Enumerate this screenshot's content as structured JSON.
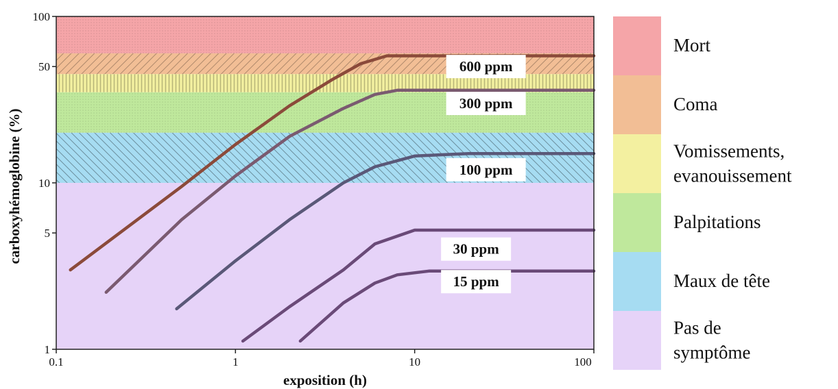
{
  "chart_data": {
    "type": "line",
    "xlabel": "exposition (h)",
    "ylabel": "carboxyhémoglobine (%)",
    "xscale": "log",
    "yscale": "log",
    "xlim": [
      0.1,
      100
    ],
    "ylim": [
      1,
      100
    ],
    "xticks": [
      {
        "value": 0.1,
        "label": "0.1"
      },
      {
        "value": 1,
        "label": "1"
      },
      {
        "value": 10,
        "label": "10"
      },
      {
        "value": 100,
        "label": "100"
      }
    ],
    "yticks": [
      {
        "value": 1,
        "label": "1"
      },
      {
        "value": 5,
        "label": "5"
      },
      {
        "value": 10,
        "label": "10"
      },
      {
        "value": 50,
        "label": "50"
      },
      {
        "value": 100,
        "label": "100"
      }
    ],
    "bands": [
      {
        "label": "Mort",
        "y0": 60,
        "y1": 100,
        "color": "#f5a5a8"
      },
      {
        "label": "Coma",
        "y0": 45,
        "y1": 60,
        "color": "#f2be95"
      },
      {
        "label": "Vomissements,\nevanouissement",
        "y0": 35,
        "y1": 45,
        "color": "#f3f0a0"
      },
      {
        "label": "Palpitations",
        "y0": 20,
        "y1": 35,
        "color": "#bfe89c"
      },
      {
        "label": "Maux de tête",
        "y0": 10,
        "y1": 20,
        "color": "#a6dcf2"
      },
      {
        "label": "Pas de\nsymptôme",
        "y0": 1,
        "y1": 10,
        "color": "#e6d3f8"
      }
    ],
    "series": [
      {
        "name": "600 ppm",
        "color": "#8b4a3a",
        "x": [
          0.12,
          0.5,
          1,
          2,
          3.5,
          5,
          7,
          10,
          30,
          100
        ],
        "y": [
          3,
          9.5,
          17,
          29,
          42,
          52,
          58,
          58,
          58,
          58
        ]
      },
      {
        "name": "300 ppm",
        "color": "#7a5a70",
        "x": [
          0.19,
          0.5,
          1,
          2,
          4,
          6,
          8,
          10,
          30,
          100
        ],
        "y": [
          2.2,
          6,
          11,
          19,
          28,
          34,
          36,
          36,
          36,
          36
        ]
      },
      {
        "name": "100 ppm",
        "color": "#5a5878",
        "x": [
          0.47,
          1,
          2,
          4,
          6,
          10,
          20,
          50,
          100
        ],
        "y": [
          1.75,
          3.4,
          6,
          10,
          12.5,
          14.5,
          15,
          15,
          15
        ]
      },
      {
        "name": "30 ppm",
        "color": "#6a4a78",
        "x": [
          1.1,
          2,
          4,
          6,
          10,
          20,
          50,
          100
        ],
        "y": [
          1.12,
          1.8,
          3,
          4.3,
          5.2,
          5.2,
          5.2,
          5.2
        ]
      },
      {
        "name": "15 ppm",
        "color": "#6a4a78",
        "x": [
          2.3,
          4,
          6,
          8,
          12,
          20,
          50,
          100
        ],
        "y": [
          1.12,
          1.9,
          2.5,
          2.8,
          2.95,
          2.95,
          2.95,
          2.95
        ]
      }
    ],
    "series_labels": [
      {
        "text": "600 ppm",
        "x": 25,
        "y": 50
      },
      {
        "text": "300 ppm",
        "x": 25,
        "y": 30
      },
      {
        "text": "100 ppm",
        "x": 25,
        "y": 12
      },
      {
        "text": "30 ppm",
        "x": 22,
        "y": 4
      },
      {
        "text": "15 ppm",
        "x": 22,
        "y": 2.55
      }
    ],
    "legend_position": "right",
    "grid": false
  }
}
